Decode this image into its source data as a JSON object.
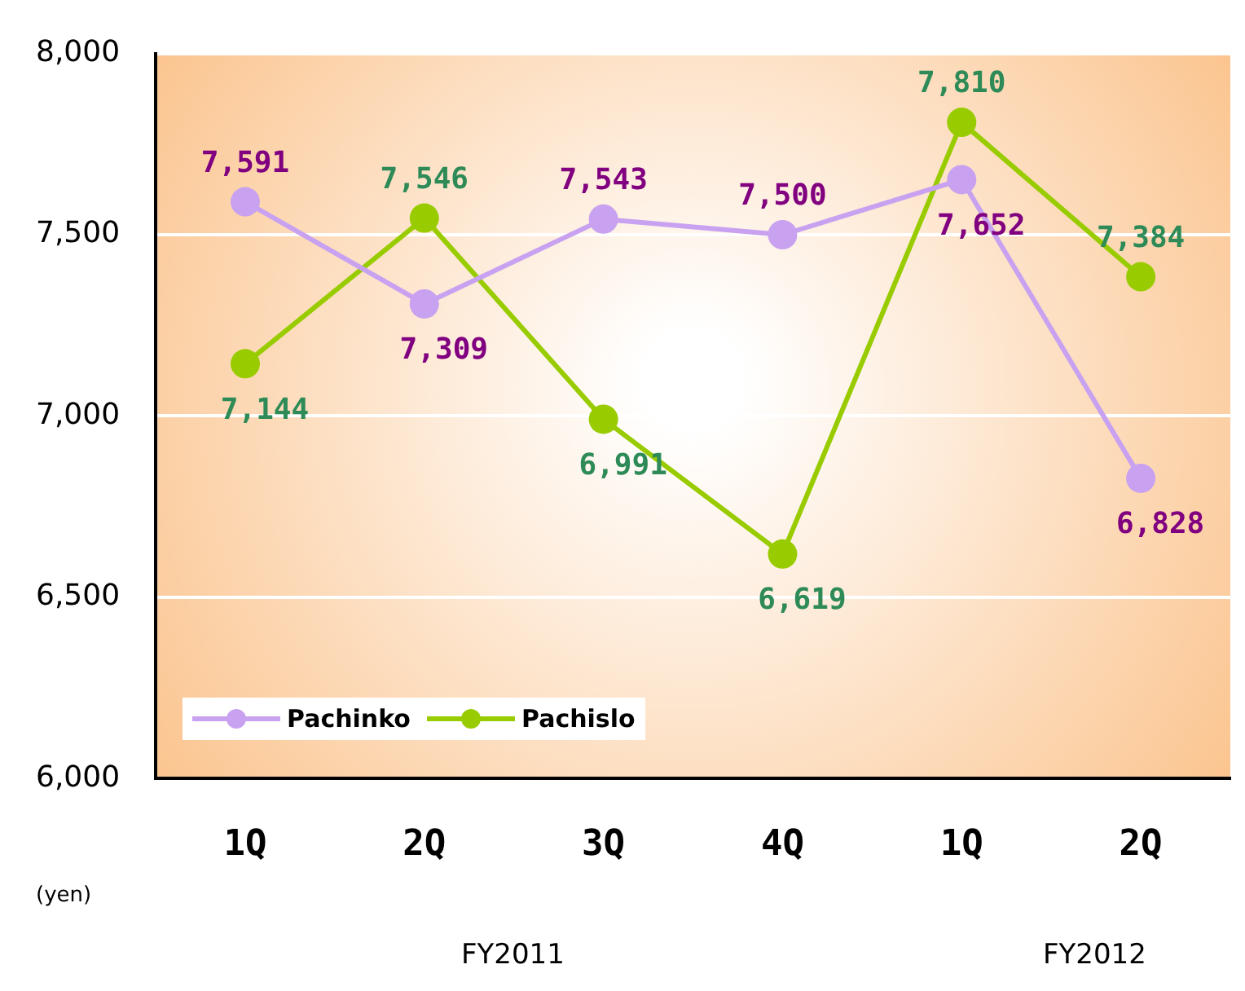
{
  "chart_data": {
    "type": "line",
    "categories": [
      "1Q",
      "2Q",
      "3Q",
      "4Q",
      "1Q",
      "2Q"
    ],
    "series": [
      {
        "name": "Pachinko",
        "color": "#c8a2f0",
        "values": [
          7591,
          7309,
          7543,
          7500,
          7652,
          6828
        ],
        "value_labels": [
          "7,591",
          "7,309",
          "7,543",
          "7,500",
          "7,652",
          "6,828"
        ]
      },
      {
        "name": "Pachislo",
        "color": "#99cc00",
        "values": [
          7144,
          7546,
          6991,
          6619,
          7810,
          7384
        ],
        "value_labels": [
          "7,144",
          "7,546",
          "6,991",
          "6,619",
          "7,810",
          "7,384"
        ]
      }
    ],
    "ylim": [
      6000,
      8000
    ],
    "yticks": [
      {
        "value": 6000,
        "label": "6,000"
      },
      {
        "value": 6500,
        "label": "6,500"
      },
      {
        "value": 7000,
        "label": "7,000"
      },
      {
        "value": 7500,
        "label": "7,500"
      },
      {
        "value": 8000,
        "label": "8,000"
      }
    ],
    "grid": "y",
    "legend": "bottom left",
    "marker": "circle",
    "line_style": "solid",
    "annotations": [
      "(yen)",
      "FY2011",
      "FY2012"
    ]
  }
}
